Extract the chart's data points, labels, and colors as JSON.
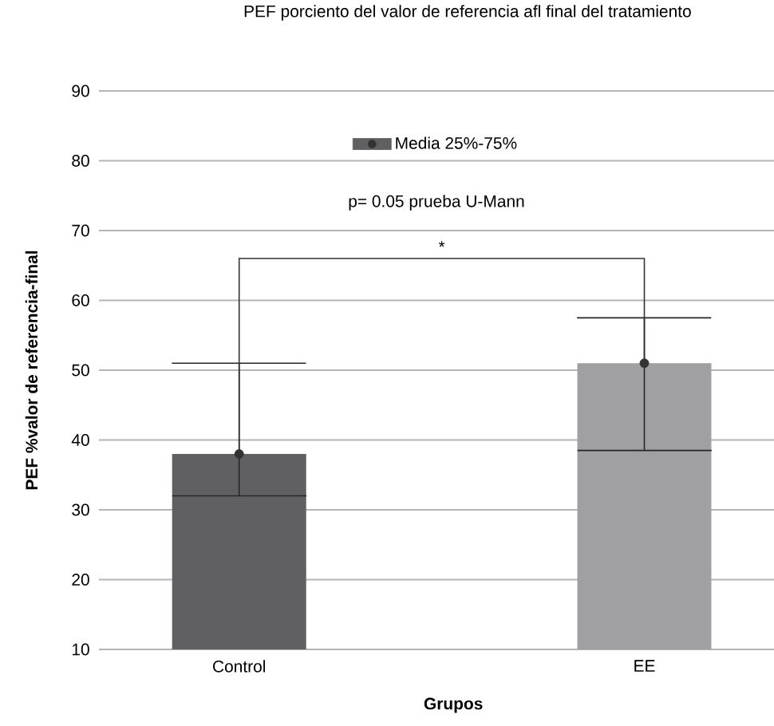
{
  "chart_data": {
    "type": "bar",
    "title": "PEF porciento del valor de referencia afl final del tratamiento",
    "xlabel": "Grupos",
    "ylabel": "PEF %valor de referencia-final",
    "categories": [
      "Control",
      "EE"
    ],
    "series": [
      {
        "name": "Media   25%-75%",
        "colors": [
          "#606062",
          "#a0a0a3"
        ],
        "values": [
          38,
          51
        ],
        "errors": [
          [
            32,
            51
          ],
          [
            38.5,
            57.5
          ]
        ]
      }
    ],
    "annotations": [
      "p= 0.05 prueba U-Mann",
      "*"
    ],
    "ylim": [
      10,
      90
    ],
    "yticks": [
      10,
      20,
      30,
      40,
      50,
      60,
      70,
      80,
      90
    ],
    "grid": "y",
    "legend": "top",
    "marker": "circle"
  }
}
